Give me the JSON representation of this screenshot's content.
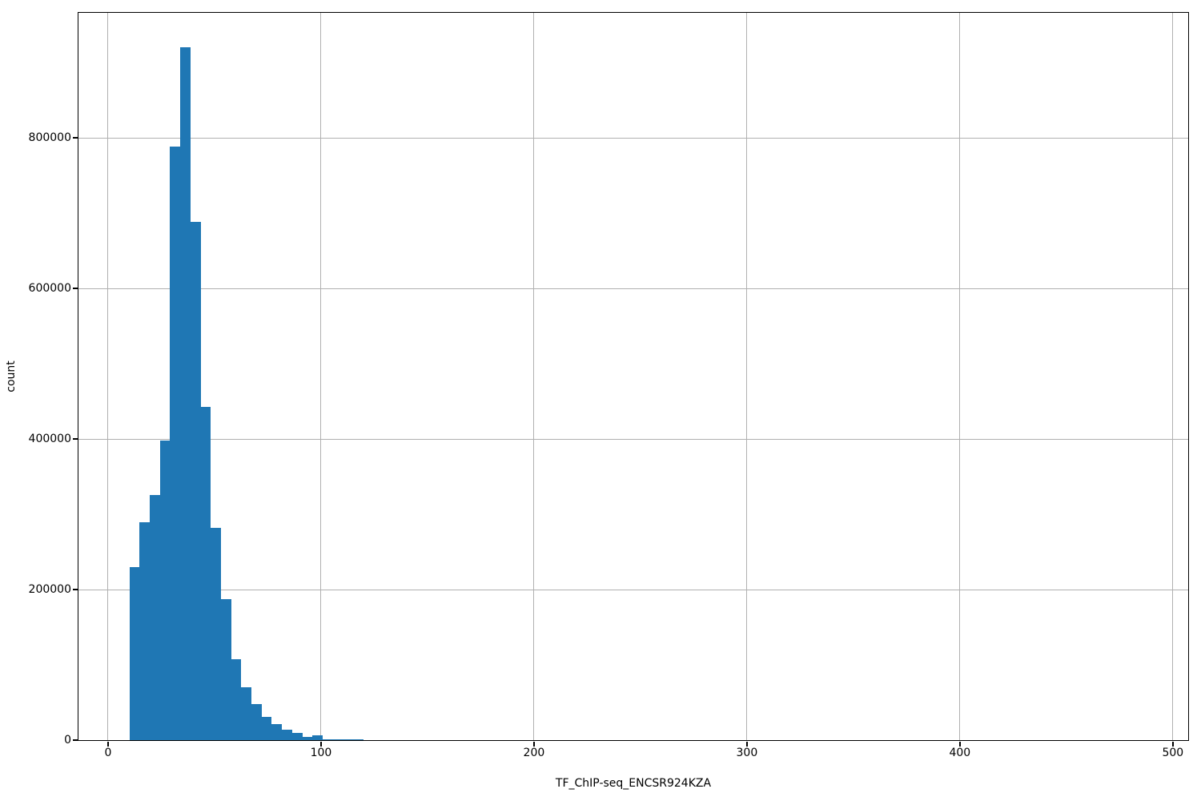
{
  "chart_data": {
    "type": "bar",
    "subtype": "histogram",
    "title": "",
    "xlabel": "TF_ChIP-seq_ENCSR924KZA",
    "ylabel": "count",
    "grid": true,
    "legend": null,
    "bar_color": "#1f77b4",
    "grid_color": "#b0b0b0",
    "spine_color": "#000000",
    "text_color": "#000000",
    "background_color": "#ffffff",
    "xlim": [
      -13.9,
      507.2
    ],
    "ylim": [
      0,
      966000
    ],
    "xticks": [
      0,
      100,
      200,
      300,
      400,
      500
    ],
    "xtick_labels": [
      "0",
      "100",
      "200",
      "300",
      "400",
      "500"
    ],
    "yticks": [
      0,
      200000,
      400000,
      600000,
      800000
    ],
    "ytick_labels": [
      "0",
      "200000",
      "400000",
      "600000",
      "800000"
    ],
    "bin_start": 10,
    "bin_width": 4.77,
    "counts": [
      230000,
      289000,
      326000,
      398000,
      788000,
      920000,
      688000,
      443000,
      282000,
      187000,
      107000,
      70000,
      48000,
      31000,
      21000,
      14000,
      10000,
      4300,
      6400,
      1100,
      1000,
      900,
      800
    ]
  }
}
